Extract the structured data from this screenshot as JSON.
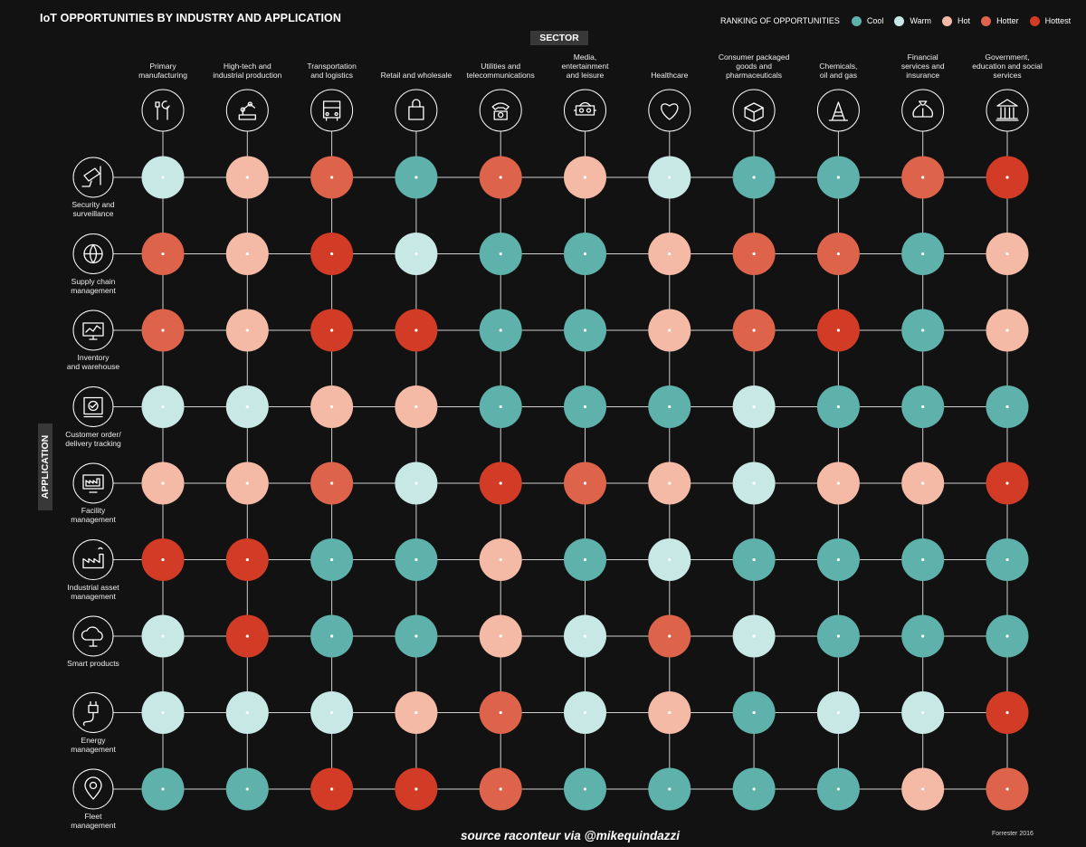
{
  "title": "IoT OPPORTUNITIES BY INDUSTRY AND APPLICATION",
  "legend": {
    "title": "RANKING OF OPPORTUNITIES",
    "levels": [
      {
        "label": "Cool",
        "color": "#5fb1ab"
      },
      {
        "label": "Warm",
        "color": "#c8e8e6"
      },
      {
        "label": "Hot",
        "color": "#f4baa5"
      },
      {
        "label": "Hotter",
        "color": "#dd634b"
      },
      {
        "label": "Hottest",
        "color": "#d23b25"
      }
    ]
  },
  "sector_label": "SECTOR",
  "application_label": "APPLICATION",
  "source": "source raconteur via @mikequindazzi",
  "credit": "Forrester 2016",
  "chart_data": {
    "type": "heatmap",
    "title": "IoT OPPORTUNITIES BY INDUSTRY AND APPLICATION",
    "xlabel": "SECTOR",
    "ylabel": "APPLICATION",
    "columns": [
      {
        "lines": [
          "Primary",
          "manufacturing"
        ],
        "icon": "tools-icon"
      },
      {
        "lines": [
          "High-tech and",
          "industrial production"
        ],
        "icon": "robot-arm-icon"
      },
      {
        "lines": [
          "Transportation",
          "and logistics"
        ],
        "icon": "bus-icon"
      },
      {
        "lines": [
          "Retail and wholesale"
        ],
        "icon": "shopping-bag-icon"
      },
      {
        "lines": [
          "Utilities and",
          "telecommunications"
        ],
        "icon": "telephone-icon"
      },
      {
        "lines": [
          "Media,",
          "entertainment",
          "and leisure"
        ],
        "icon": "vr-headset-icon"
      },
      {
        "lines": [
          "Healthcare"
        ],
        "icon": "heart-icon"
      },
      {
        "lines": [
          "Consumer packaged",
          "goods and",
          "pharmaceuticals"
        ],
        "icon": "open-box-icon"
      },
      {
        "lines": [
          "Chemicals,",
          "oil and gas"
        ],
        "icon": "oil-rig-icon"
      },
      {
        "lines": [
          "Financial",
          "services and",
          "insurance"
        ],
        "icon": "money-bag-icon"
      },
      {
        "lines": [
          "Government,",
          "education and social",
          "services"
        ],
        "icon": "government-building-icon"
      }
    ],
    "rows": [
      {
        "lines": [
          "Security and",
          "surveillance"
        ],
        "icon": "security-camera-icon"
      },
      {
        "lines": [
          "Supply chain",
          "management"
        ],
        "icon": "globe-icon"
      },
      {
        "lines": [
          "Inventory",
          "and warehouse"
        ],
        "icon": "monitor-chart-icon"
      },
      {
        "lines": [
          "Customer order/",
          "delivery tracking"
        ],
        "icon": "checklist-icon"
      },
      {
        "lines": [
          "Facility",
          "management"
        ],
        "icon": "factory-monitor-icon"
      },
      {
        "lines": [
          "Industrial asset",
          "management"
        ],
        "icon": "factory-icon"
      },
      {
        "lines": [
          "Smart products"
        ],
        "icon": "cloud-icon"
      },
      {
        "lines": [
          "Energy",
          "management"
        ],
        "icon": "plug-icon"
      },
      {
        "lines": [
          "Fleet",
          "management"
        ],
        "icon": "location-pin-icon"
      }
    ],
    "scale": [
      "Cool",
      "Warm",
      "Hot",
      "Hotter",
      "Hottest"
    ],
    "values": [
      [
        "Warm",
        "Hot",
        "Hotter",
        "Cool",
        "Hotter",
        "Hot",
        "Warm",
        "Cool",
        "Cool",
        "Hotter",
        "Hottest"
      ],
      [
        "Hotter",
        "Hot",
        "Hottest",
        "Warm",
        "Cool",
        "Cool",
        "Hot",
        "Hotter",
        "Hotter",
        "Cool",
        "Hot"
      ],
      [
        "Hotter",
        "Hot",
        "Hottest",
        "Hottest",
        "Cool",
        "Cool",
        "Hot",
        "Hotter",
        "Hottest",
        "Cool",
        "Hot"
      ],
      [
        "Warm",
        "Warm",
        "Hot",
        "Hot",
        "Cool",
        "Cool",
        "Cool",
        "Warm",
        "Cool",
        "Cool",
        "Cool"
      ],
      [
        "Hot",
        "Hot",
        "Hotter",
        "Warm",
        "Hottest",
        "Hotter",
        "Hot",
        "Warm",
        "Hot",
        "Hot",
        "Hottest"
      ],
      [
        "Hottest",
        "Hottest",
        "Cool",
        "Cool",
        "Hot",
        "Cool",
        "Warm",
        "Cool",
        "Cool",
        "Cool",
        "Cool"
      ],
      [
        "Warm",
        "Hottest",
        "Cool",
        "Cool",
        "Hot",
        "Warm",
        "Hotter",
        "Warm",
        "Cool",
        "Cool",
        "Cool"
      ],
      [
        "Warm",
        "Warm",
        "Warm",
        "Hot",
        "Hotter",
        "Warm",
        "Hot",
        "Cool",
        "Warm",
        "Warm",
        "Hottest"
      ],
      [
        "Cool",
        "Cool",
        "Hottest",
        "Hottest",
        "Hotter",
        "Cool",
        "Cool",
        "Cool",
        "Cool",
        "Hot",
        "Hotter"
      ]
    ]
  }
}
